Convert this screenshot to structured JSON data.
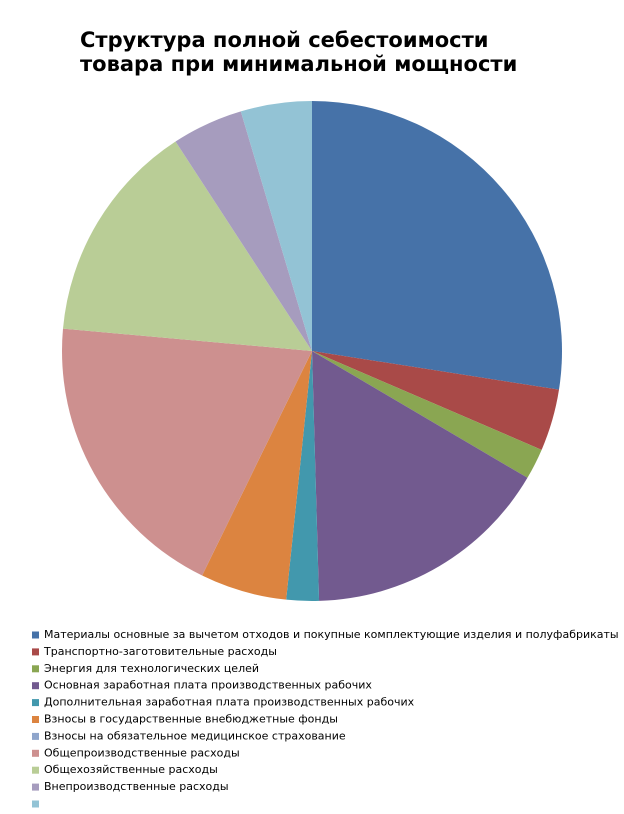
{
  "chart_data": {
    "type": "pie",
    "title": "Структура полной себестоимости товара при минимальной мощности",
    "categories": [
      "Материалы основные за вычетом отходов и покупные комплектующие изделия и полуфабрикаты",
      "Транспортно-заготовительные расходы",
      "Энергия для технологических целей",
      "Основная заработная плата производственных рабочих",
      "Дополнительная заработная плата производственных рабочих",
      "Взносы в государственные внебюджетные фонды",
      "Взносы на обязательное медицинское страхование",
      "Общепроизводственные расходы",
      "Общехозяйственные расходы",
      "Внепроизводственные расходы",
      null
    ],
    "values": [
      27.5,
      4.0,
      2.0,
      16.1,
      2.1,
      5.6,
      0,
      19.2,
      14.4,
      4.6,
      4.6
    ],
    "colors": [
      "#4672a8",
      "#a94a48",
      "#8aa652",
      "#725a8f",
      "#4298ad",
      "#dc8440",
      "#8fa5cb",
      "#cd908f",
      "#b9cd96",
      "#a69cbe",
      "#93c3d5"
    ],
    "legend": "bottom"
  }
}
